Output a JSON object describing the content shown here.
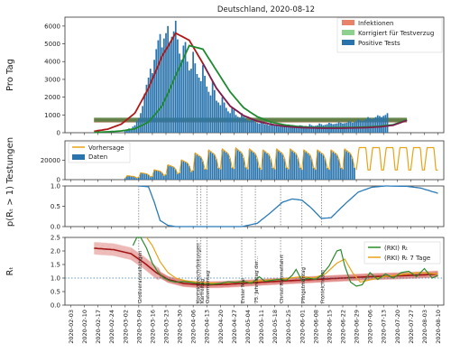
{
  "title": "Deutschland, 2020-08-12",
  "colors": {
    "infektionen": "#e8826a",
    "korrigiert": "#8ed08e",
    "positive": "#2a74ad",
    "vorhersage": "#e8a317",
    "daten": "#2a74ad",
    "prob_line": "#2b7bb9",
    "rki": "#2c8a2c",
    "rki7": "#e8a317",
    "red_band": "#c8281e",
    "green_band": "#1e8a30",
    "purple_band": "#7a1e55"
  },
  "chart_data": [
    {
      "type": "bar",
      "ylabel": "Pro Tag",
      "ylim": [
        0,
        6500
      ],
      "yticks": [
        "0",
        "1000",
        "2000",
        "3000",
        "4000",
        "5000",
        "6000"
      ],
      "legend": [
        "Infektionen",
        "Korrigiert für Testverzug",
        "Positive Tests"
      ],
      "legend_position": "top-right",
      "series": [
        {
          "name": "Positive Tests",
          "x_start": "2020-03-02",
          "values": [
            130,
            160,
            240,
            190,
            340,
            420,
            640,
            820,
            1100,
            1500,
            2200,
            2700,
            3100,
            3600,
            3350,
            4100,
            4700,
            5200,
            5550,
            4800,
            5300,
            5600,
            6000,
            5100,
            5400,
            5700,
            6300,
            5250,
            4450,
            4100,
            4900,
            5100,
            4000,
            3500,
            3600,
            4550,
            3900,
            3300,
            3100,
            2900,
            3800,
            3200,
            2600,
            2300,
            2100,
            2900,
            2400,
            1800,
            1700,
            1550,
            2000,
            1700,
            1400,
            1200,
            1100,
            1400,
            1300,
            1000,
            900,
            850,
            1100,
            900,
            800,
            700,
            650,
            800,
            720,
            600,
            550,
            520,
            650,
            600,
            480,
            460,
            420,
            550,
            500,
            400,
            380,
            350,
            450,
            420,
            360,
            330,
            320,
            400,
            380,
            340,
            300,
            320,
            420,
            400,
            350,
            380,
            360,
            480,
            420,
            380,
            390,
            420,
            520,
            480,
            420,
            450,
            480,
            560,
            520,
            480,
            500,
            520,
            600,
            560,
            520,
            540,
            560,
            650,
            620,
            560,
            600,
            640,
            750,
            700,
            650,
            700,
            760,
            880,
            820,
            760,
            820,
            880,
            980,
            940,
            880,
            950,
            1000,
            1100
          ]
        },
        {
          "name": "Infektionen",
          "x_start": "2020-02-15",
          "values": [
            80,
            200,
            480,
            1100,
            2500,
            4300,
            5600,
            5200,
            3900,
            2500,
            1500,
            960,
            650,
            470,
            360,
            300,
            270,
            260,
            260,
            270,
            290,
            330,
            420,
            700
          ]
        },
        {
          "name": "Korrigiert für Testverzug",
          "x_start": "2020-02-15",
          "values": [
            20,
            50,
            100,
            220,
            600,
            1500,
            3200,
            4900,
            4700,
            3500,
            2300,
            1400,
            900,
            600,
            440,
            350,
            300,
            290,
            290,
            300,
            320,
            360,
            450,
            720
          ]
        }
      ]
    },
    {
      "type": "bar",
      "ylabel": "Testungen",
      "ylim": [
        0,
        40000
      ],
      "yticks": [
        "0",
        "20000"
      ],
      "legend": [
        "Vorhersage",
        "Daten"
      ],
      "legend_position": "top-left",
      "series": [
        {
          "name": "Daten",
          "x_start": "2020-03-02",
          "weekly_pattern": [
            0.35,
            1,
            0.95,
            0.9,
            0.85,
            0.7,
            0.4
          ],
          "weekly_peak": [
            4000,
            7000,
            10000,
            15000,
            20000,
            27000,
            30000,
            31000,
            32000,
            31000,
            30000,
            31000,
            31000,
            30000,
            30000,
            30000,
            31000
          ]
        },
        {
          "name": "Vorhersage",
          "x_start": "2020-06-29",
          "x_end": "2020-08-10",
          "min": 10000,
          "max": 33000
        }
      ]
    },
    {
      "type": "line",
      "ylabel": "p(Rₜ > 1)",
      "ylim": [
        0,
        1
      ],
      "yticks": [
        "0.0",
        "0.5",
        "1.0"
      ],
      "series": [
        {
          "name": "",
          "points": [
            [
              "2020-03-09",
              1.0
            ],
            [
              "2020-03-14",
              0.98
            ],
            [
              "2020-03-17",
              0.6
            ],
            [
              "2020-03-20",
              0.15
            ],
            [
              "2020-03-24",
              0.03
            ],
            [
              "2020-03-28",
              0.0
            ],
            [
              "2020-05-01",
              0.0
            ],
            [
              "2020-05-09",
              0.08
            ],
            [
              "2020-05-16",
              0.35
            ],
            [
              "2020-05-22",
              0.6
            ],
            [
              "2020-05-27",
              0.68
            ],
            [
              "2020-06-01",
              0.65
            ],
            [
              "2020-06-06",
              0.45
            ],
            [
              "2020-06-11",
              0.2
            ],
            [
              "2020-06-16",
              0.22
            ],
            [
              "2020-06-23",
              0.55
            ],
            [
              "2020-06-30",
              0.85
            ],
            [
              "2020-07-07",
              0.97
            ],
            [
              "2020-07-14",
              1.0
            ],
            [
              "2020-07-25",
              0.99
            ],
            [
              "2020-08-01",
              0.95
            ],
            [
              "2020-08-10",
              0.82
            ]
          ]
        }
      ]
    },
    {
      "type": "line",
      "ylabel": "Rₜ",
      "ylim": [
        0,
        2.5
      ],
      "yticks": [
        "0.0",
        "0.5",
        "1.0",
        "1.5",
        "2.0",
        "2.5"
      ],
      "legend": [
        "(RKI) Rₜ",
        "(RKI) Rₜ 7 Tage"
      ],
      "legend_position": "right",
      "reference_line": 1.0,
      "series": [
        {
          "name": "(RKI) Rₜ",
          "points": [
            [
              "2020-03-06",
              2.2
            ],
            [
              "2020-03-08",
              2.5
            ],
            [
              "2020-03-10",
              2.5
            ],
            [
              "2020-03-13",
              2.1
            ],
            [
              "2020-03-16",
              1.55
            ],
            [
              "2020-03-19",
              1.2
            ],
            [
              "2020-03-22",
              1.0
            ],
            [
              "2020-03-25",
              0.9
            ],
            [
              "2020-03-28",
              0.85
            ],
            [
              "2020-04-01",
              0.87
            ],
            [
              "2020-04-04",
              0.85
            ],
            [
              "2020-04-08",
              0.8
            ],
            [
              "2020-04-12",
              0.78
            ],
            [
              "2020-04-16",
              0.77
            ],
            [
              "2020-04-20",
              0.8
            ],
            [
              "2020-04-24",
              0.86
            ],
            [
              "2020-04-28",
              0.84
            ],
            [
              "2020-05-02",
              0.88
            ],
            [
              "2020-05-06",
              0.8
            ],
            [
              "2020-05-10",
              1.05
            ],
            [
              "2020-05-13",
              0.88
            ],
            [
              "2020-05-17",
              0.92
            ],
            [
              "2020-05-20",
              0.95
            ],
            [
              "2020-05-24",
              0.92
            ],
            [
              "2020-05-27",
              1.1
            ],
            [
              "2020-05-29",
              1.32
            ],
            [
              "2020-06-01",
              0.9
            ],
            [
              "2020-06-04",
              1.0
            ],
            [
              "2020-06-08",
              0.95
            ],
            [
              "2020-06-11",
              1.1
            ],
            [
              "2020-06-15",
              1.45
            ],
            [
              "2020-06-19",
              2.0
            ],
            [
              "2020-06-21",
              2.05
            ],
            [
              "2020-06-23",
              1.45
            ],
            [
              "2020-06-26",
              0.85
            ],
            [
              "2020-06-29",
              0.7
            ],
            [
              "2020-07-02",
              0.75
            ],
            [
              "2020-07-06",
              1.2
            ],
            [
              "2020-07-10",
              0.95
            ],
            [
              "2020-07-14",
              1.15
            ],
            [
              "2020-07-18",
              1.0
            ],
            [
              "2020-07-22",
              1.2
            ],
            [
              "2020-07-26",
              1.25
            ],
            [
              "2020-07-30",
              1.05
            ],
            [
              "2020-08-03",
              1.35
            ],
            [
              "2020-08-07",
              1.0
            ],
            [
              "2020-08-10",
              1.1
            ]
          ]
        },
        {
          "name": "(RKI) Rₜ 7 Tage",
          "points": [
            [
              "2020-03-13",
              2.5
            ],
            [
              "2020-03-16",
              2.2
            ],
            [
              "2020-03-20",
              1.6
            ],
            [
              "2020-03-24",
              1.2
            ],
            [
              "2020-03-28",
              1.0
            ],
            [
              "2020-04-02",
              0.9
            ],
            [
              "2020-04-08",
              0.85
            ],
            [
              "2020-04-14",
              0.82
            ],
            [
              "2020-04-20",
              0.8
            ],
            [
              "2020-04-26",
              0.85
            ],
            [
              "2020-05-02",
              0.85
            ],
            [
              "2020-05-08",
              0.88
            ],
            [
              "2020-05-14",
              0.92
            ],
            [
              "2020-05-20",
              0.95
            ],
            [
              "2020-05-26",
              1.0
            ],
            [
              "2020-06-01",
              1.05
            ],
            [
              "2020-06-07",
              1.0
            ],
            [
              "2020-06-13",
              1.15
            ],
            [
              "2020-06-19",
              1.55
            ],
            [
              "2020-06-23",
              1.7
            ],
            [
              "2020-06-27",
              1.2
            ],
            [
              "2020-07-01",
              0.85
            ],
            [
              "2020-07-07",
              0.95
            ],
            [
              "2020-07-13",
              1.05
            ],
            [
              "2020-07-19",
              1.1
            ],
            [
              "2020-07-25",
              1.15
            ],
            [
              "2020-07-31",
              1.2
            ],
            [
              "2020-08-05",
              1.18
            ],
            [
              "2020-08-10",
              1.15
            ]
          ]
        }
      ],
      "band": [
        [
          "2020-02-15",
          2.1
        ],
        [
          "2020-02-25",
          2.05
        ],
        [
          "2020-03-05",
          1.9
        ],
        [
          "2020-03-12",
          1.55
        ],
        [
          "2020-03-18",
          1.2
        ],
        [
          "2020-03-24",
          0.95
        ],
        [
          "2020-04-01",
          0.8
        ],
        [
          "2020-04-10",
          0.75
        ],
        [
          "2020-04-20",
          0.76
        ],
        [
          "2020-05-01",
          0.8
        ],
        [
          "2020-05-12",
          0.85
        ],
        [
          "2020-05-25",
          0.9
        ],
        [
          "2020-06-08",
          0.95
        ],
        [
          "2020-06-22",
          1.0
        ],
        [
          "2020-07-06",
          1.05
        ],
        [
          "2020-07-20",
          1.08
        ],
        [
          "2020-08-03",
          1.12
        ],
        [
          "2020-08-10",
          1.15
        ]
      ]
    }
  ],
  "events": [
    {
      "date": "2020-03-09",
      "label": "Großveranstaltungen"
    },
    {
      "date": "2020-04-08",
      "label": "Kontaktbeschränkungen"
    },
    {
      "date": "2020-04-10",
      "label": "Karfreitag"
    },
    {
      "date": "2020-04-13",
      "label": "Ostermontag"
    },
    {
      "date": "2020-05-01",
      "label": "Erster Mai"
    },
    {
      "date": "2020-05-08",
      "label": "75. Jahrestag der..."
    },
    {
      "date": "2020-05-21",
      "label": "Christi Himmelfahrt"
    },
    {
      "date": "2020-06-01",
      "label": "Pfingstmontag"
    },
    {
      "date": "2020-06-11",
      "label": "Fronleichnam"
    }
  ],
  "x_axis": {
    "start": "2020-01-31",
    "end": "2020-08-13",
    "ticks": [
      "2020-02-03",
      "2020-02-10",
      "2020-02-17",
      "2020-02-24",
      "2020-03-02",
      "2020-03-09",
      "2020-03-16",
      "2020-03-23",
      "2020-03-30",
      "2020-04-06",
      "2020-04-13",
      "2020-04-20",
      "2020-04-27",
      "2020-05-04",
      "2020-05-11",
      "2020-05-18",
      "2020-05-25",
      "2020-06-01",
      "2020-06-08",
      "2020-06-15",
      "2020-06-22",
      "2020-06-29",
      "2020-07-06",
      "2020-07-13",
      "2020-07-20",
      "2020-07-27",
      "2020-08-03",
      "2020-08-10"
    ]
  }
}
